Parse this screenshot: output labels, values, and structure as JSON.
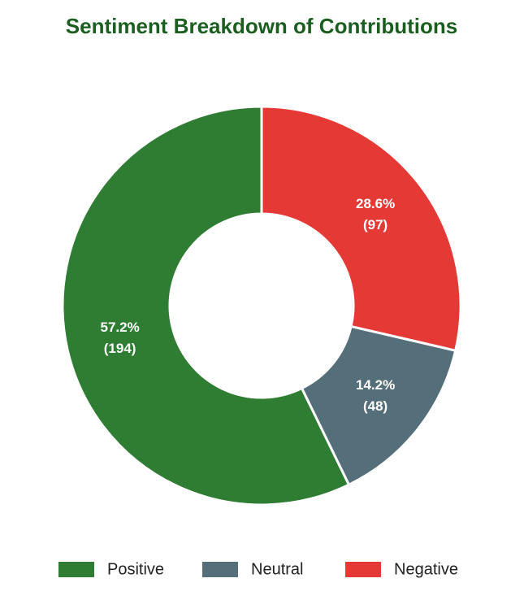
{
  "chart_data": {
    "type": "donut",
    "title": "Sentiment Breakdown of Contributions",
    "categories": [
      "Positive",
      "Neutral",
      "Negative"
    ],
    "values": [
      194,
      48,
      97
    ],
    "percent_labels": [
      "57.2%",
      "14.2%",
      "28.6%"
    ],
    "value_labels": [
      "(194)",
      "(48)",
      "(97)"
    ],
    "colors": [
      "#2e7d32",
      "#546e7a",
      "#e53935"
    ],
    "legend": "bottom"
  }
}
